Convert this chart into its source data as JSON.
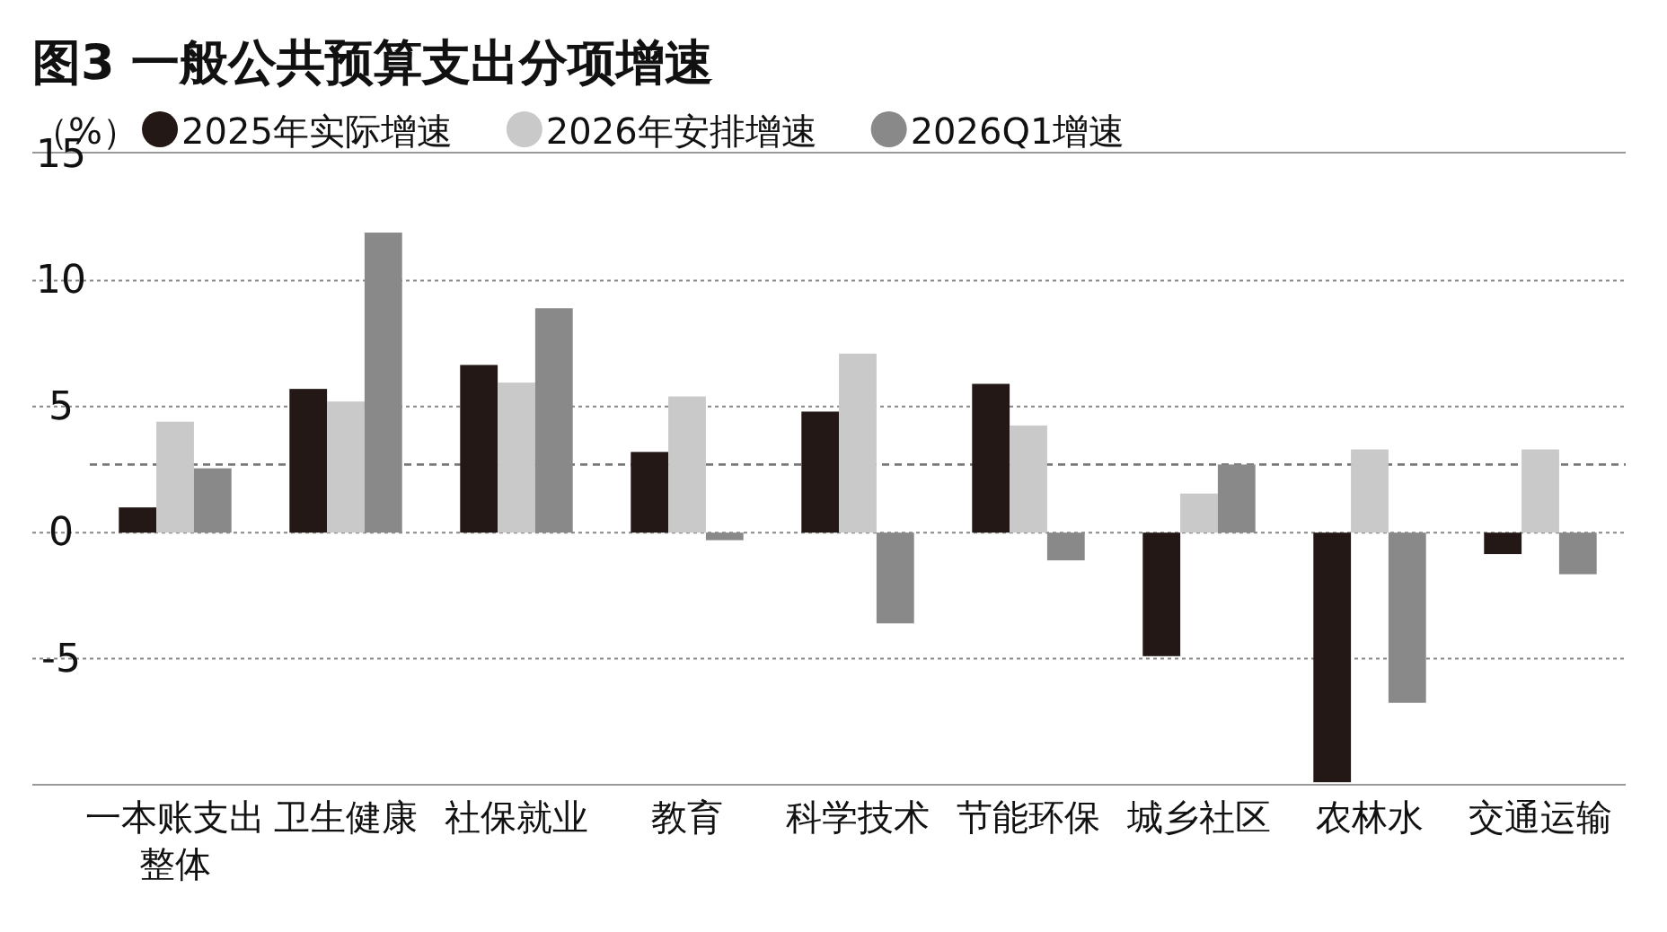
{
  "chart_data": {
    "type": "bar",
    "title": "图3 一般公共预算支出分项增速",
    "ylabel": "（%）",
    "categories": [
      "一本账支出整体",
      "卫生健康",
      "社保就业",
      "教育",
      "科学技术",
      "节能环保",
      "城乡社区",
      "农林水",
      "交通运输"
    ],
    "series": [
      {
        "name": "2025年实际增速",
        "color": "#231815",
        "values": [
          1.0,
          5.7,
          6.65,
          3.2,
          4.8,
          5.9,
          -4.9,
          -9.9,
          -0.85
        ]
      },
      {
        "name": "2026年安排增速",
        "color": "#c9c9ca",
        "values": [
          4.4,
          5.2,
          5.95,
          5.4,
          7.1,
          4.25,
          1.55,
          3.3,
          3.3
        ]
      },
      {
        "name": "2026Q1增速",
        "color": "#898989",
        "values": [
          2.55,
          11.9,
          8.9,
          -0.3,
          -3.6,
          -1.1,
          2.7,
          -6.75,
          -1.65
        ]
      }
    ],
    "ylim": [
      -10,
      15
    ],
    "yticks": [
      -5,
      0,
      5,
      10,
      15
    ],
    "grid": "y",
    "legend": "top left",
    "ref_lines": [
      {
        "axis": "y",
        "value": 2.7,
        "line_style": "dashed",
        "color": "#777777"
      }
    ]
  }
}
